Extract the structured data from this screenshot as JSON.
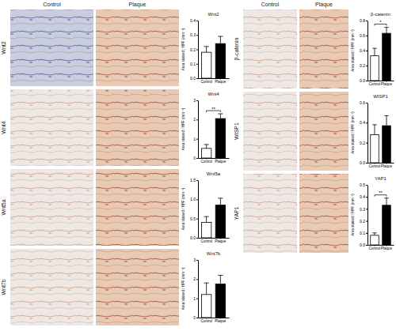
{
  "panel_headers": [
    "Control",
    "Plaque"
  ],
  "chart_data": [
    {
      "type": "bar",
      "title": "Wnt2",
      "categories": [
        "Control",
        "Plaque"
      ],
      "values": [
        0.18,
        0.24
      ],
      "errors": [
        0.04,
        0.05
      ],
      "colors": [
        "#ffffff",
        "#000000"
      ],
      "ylabel": "Area stained / HPF (mm⁻¹)",
      "ylim": [
        0,
        0.4
      ],
      "yticks": [
        {
          "value": 0,
          "label": "0.0"
        },
        0.1,
        0.2,
        0.3,
        0.4
      ]
    },
    {
      "type": "bar",
      "title": "Wnt4",
      "categories": [
        "Control",
        "Plaque"
      ],
      "values": [
        0.5,
        2.05
      ],
      "errors": [
        0.2,
        0.25
      ],
      "colors": [
        "#ffffff",
        "#000000"
      ],
      "ylabel": "Area stained / HPF (mm⁻¹)",
      "ylim": [
        0,
        3
      ],
      "yticks": [
        0,
        1,
        2,
        3
      ],
      "annotation": "**"
    },
    {
      "type": "bar",
      "title": "Wnt5a",
      "categories": [
        "Control",
        "Plaque"
      ],
      "values": [
        0.4,
        0.85
      ],
      "errors": [
        0.15,
        0.18
      ],
      "colors": [
        "#ffffff",
        "#000000"
      ],
      "ylabel": "Area stained / HPF (mm⁻¹)",
      "ylim": [
        0,
        1.5
      ],
      "yticks": [
        {
          "value": 0,
          "label": "0.0"
        },
        0.5,
        {
          "value": 1,
          "label": "1.0"
        },
        1.5
      ]
    },
    {
      "type": "bar",
      "title": "Wnt7b",
      "categories": [
        "Control",
        "Plaque"
      ],
      "values": [
        1.2,
        1.75
      ],
      "errors": [
        0.6,
        0.45
      ],
      "colors": [
        "#ffffff",
        "#000000"
      ],
      "ylabel": "Area stained / HPF (mm⁻¹)",
      "ylim": [
        0,
        3
      ],
      "yticks": [
        0,
        1,
        2,
        3
      ]
    },
    {
      "type": "bar",
      "title": "β-catenin",
      "categories": [
        "Control",
        "Plaque"
      ],
      "values": [
        0.33,
        0.63
      ],
      "errors": [
        0.1,
        0.08
      ],
      "colors": [
        "#ffffff",
        "#000000"
      ],
      "ylabel": "Area stained / HPF (mm⁻¹)",
      "ylim": [
        0,
        0.8
      ],
      "yticks": [
        {
          "value": 0,
          "label": "0.0"
        },
        0.2,
        0.4,
        0.6,
        0.8
      ],
      "annotation": "*"
    },
    {
      "type": "bar",
      "title": "WISP1",
      "categories": [
        "Control",
        "Plaque"
      ],
      "values": [
        0.28,
        0.37
      ],
      "errors": [
        0.1,
        0.1
      ],
      "colors": [
        "#ffffff",
        "#000000"
      ],
      "ylabel": "Area stained / HPF (mm⁻¹)",
      "ylim": [
        0,
        0.6
      ],
      "yticks": [
        {
          "value": 0,
          "label": "0.0"
        },
        0.2,
        0.4,
        0.6
      ]
    },
    {
      "type": "bar",
      "title": "YAP1",
      "categories": [
        "Control",
        "Plaque"
      ],
      "values": [
        0.08,
        0.33
      ],
      "errors": [
        0.02,
        0.06
      ],
      "colors": [
        "#ffffff",
        "#000000"
      ],
      "ylabel": "Area stained / HPF (mm⁻¹)",
      "ylim": [
        0,
        0.5
      ],
      "yticks": [
        {
          "value": 0,
          "label": "0.0"
        },
        0.1,
        0.2,
        0.3,
        0.4,
        0.5
      ],
      "annotation": "**"
    }
  ]
}
